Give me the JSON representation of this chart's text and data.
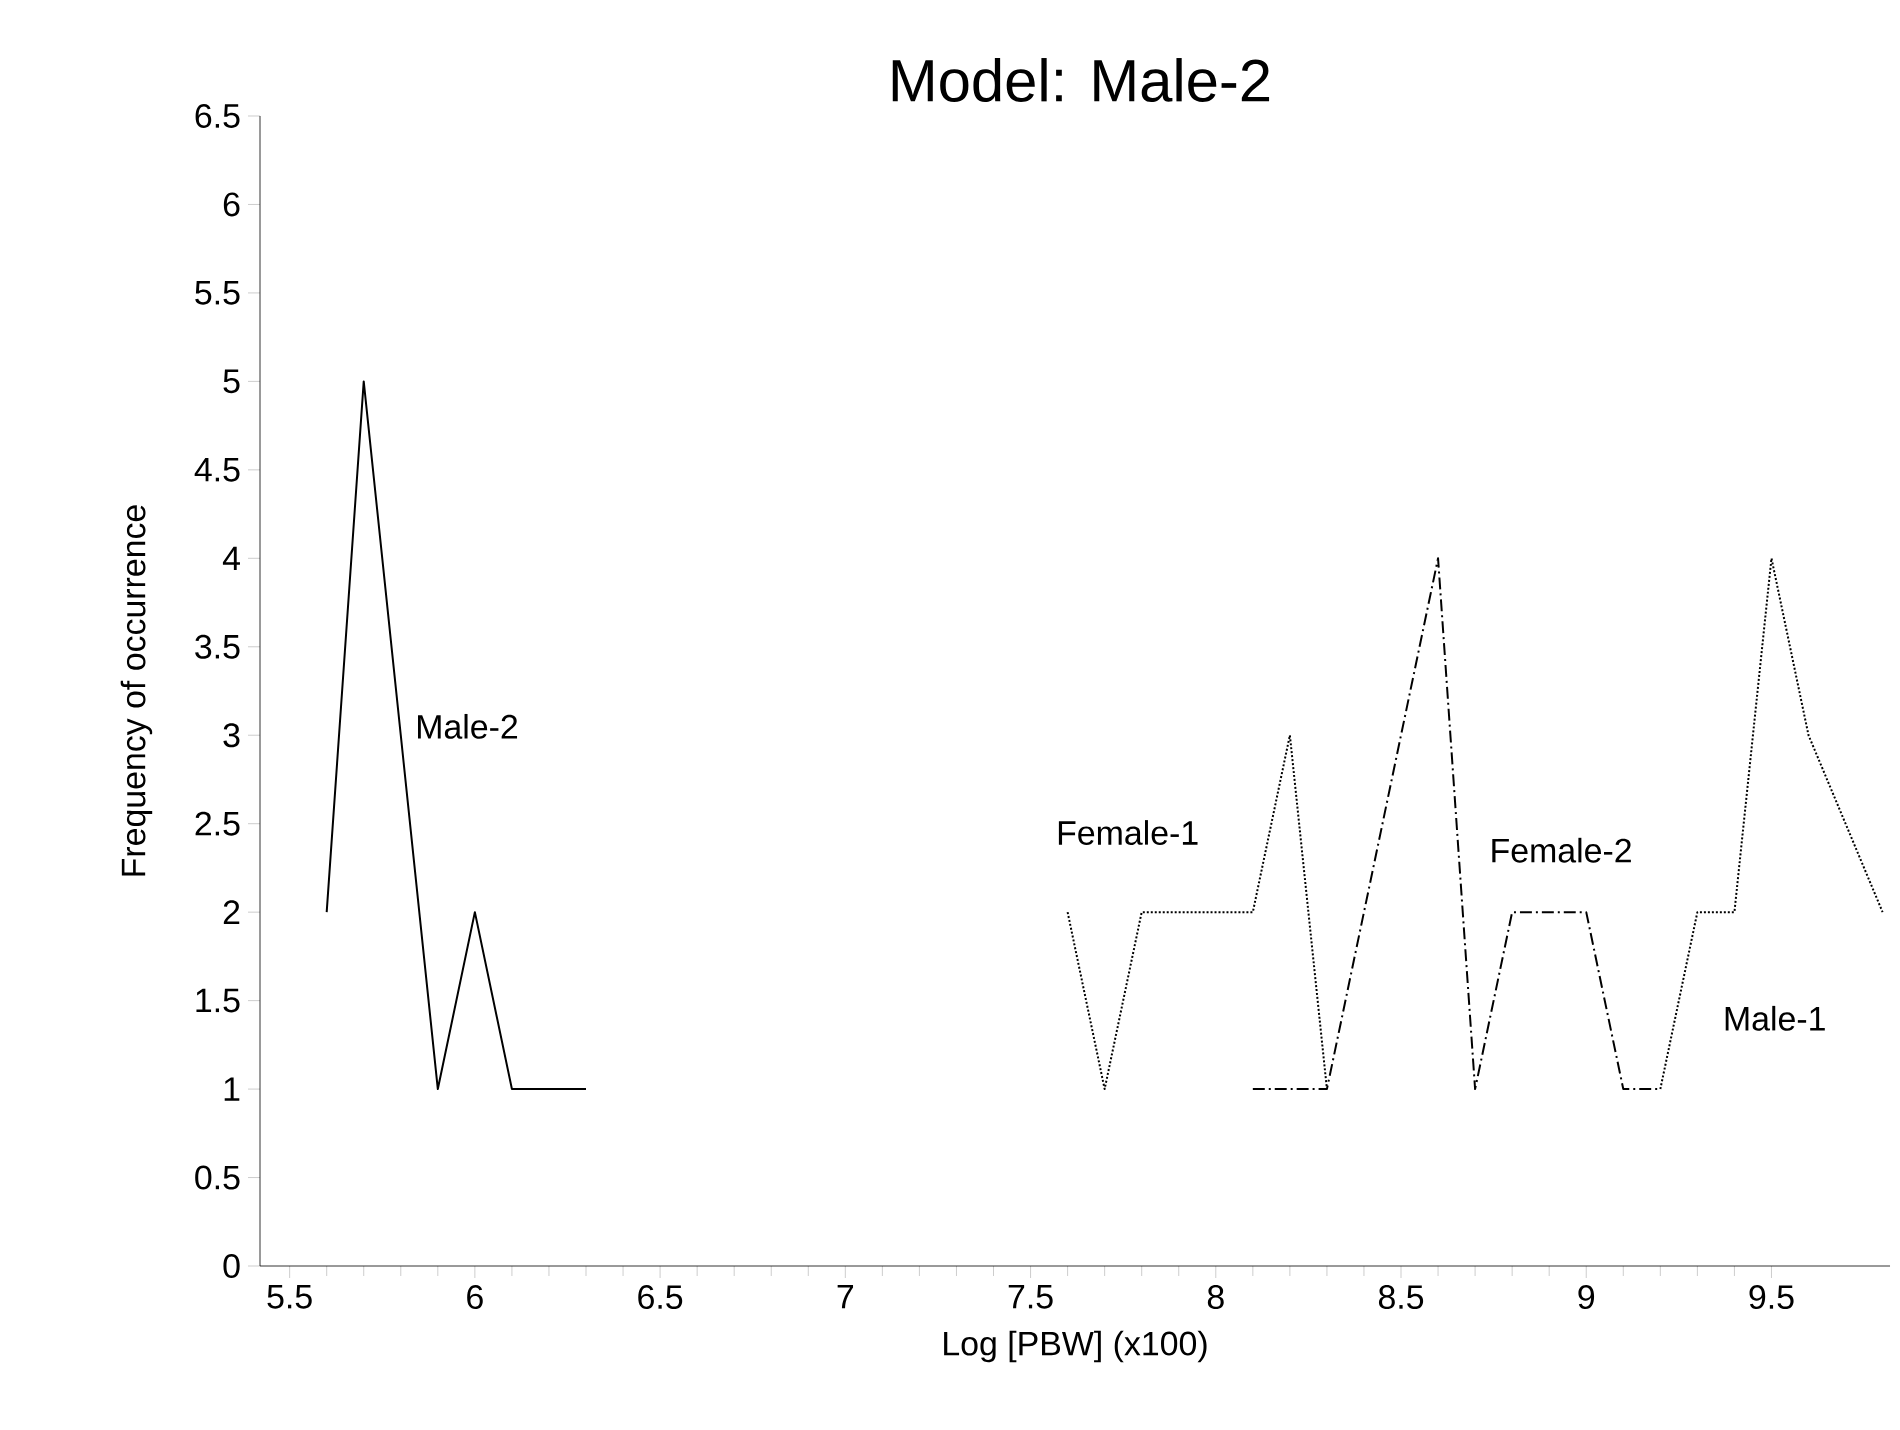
{
  "chart_data": {
    "type": "line",
    "title": "Model: Male-2",
    "xlabel": "Log [PBW] (x100)",
    "ylabel": "Frequency of occurrence",
    "xlim": [
      5.42,
      9.82
    ],
    "xticks": [
      5.5,
      6,
      6.5,
      7,
      7.5,
      8,
      8.5,
      9,
      9.5
    ],
    "ylim": [
      0,
      6.5
    ],
    "yticks": [
      0,
      0.5,
      1,
      1.5,
      2,
      2.5,
      3,
      3.5,
      4,
      4.5,
      5,
      5.5,
      6,
      6.5
    ],
    "grid": false,
    "legend": false,
    "marker": "none",
    "series": [
      {
        "name": "Male-2",
        "color": "#000000",
        "line_style": "solid",
        "x": [
          5.6,
          5.7,
          5.8,
          5.9,
          6.0,
          6.1,
          6.2,
          6.3
        ],
        "values": [
          2,
          5,
          3,
          1,
          2,
          1,
          1,
          1
        ]
      },
      {
        "name": "Female-1",
        "color": "#000000",
        "line_style": "dotted",
        "x": [
          7.6,
          7.7,
          7.8,
          7.9,
          8.0,
          8.1,
          8.2,
          8.3
        ],
        "values": [
          2,
          1,
          2,
          2,
          2,
          2,
          3,
          1
        ]
      },
      {
        "name": "Female-2",
        "color": "#000000",
        "line_style": "dashed",
        "x": [
          8.1,
          8.2,
          8.3,
          8.6,
          8.7,
          8.8,
          8.9,
          9.0,
          9.1,
          9.2
        ],
        "values": [
          1,
          1,
          1,
          4,
          1,
          2,
          2,
          2,
          1,
          1
        ]
      },
      {
        "name": "Male-1",
        "color": "#000000",
        "line_style": "dotted",
        "x": [
          9.2,
          9.3,
          9.4,
          9.5,
          9.6,
          9.8
        ],
        "values": [
          1,
          2,
          2,
          4,
          3,
          2
        ]
      }
    ]
  }
}
